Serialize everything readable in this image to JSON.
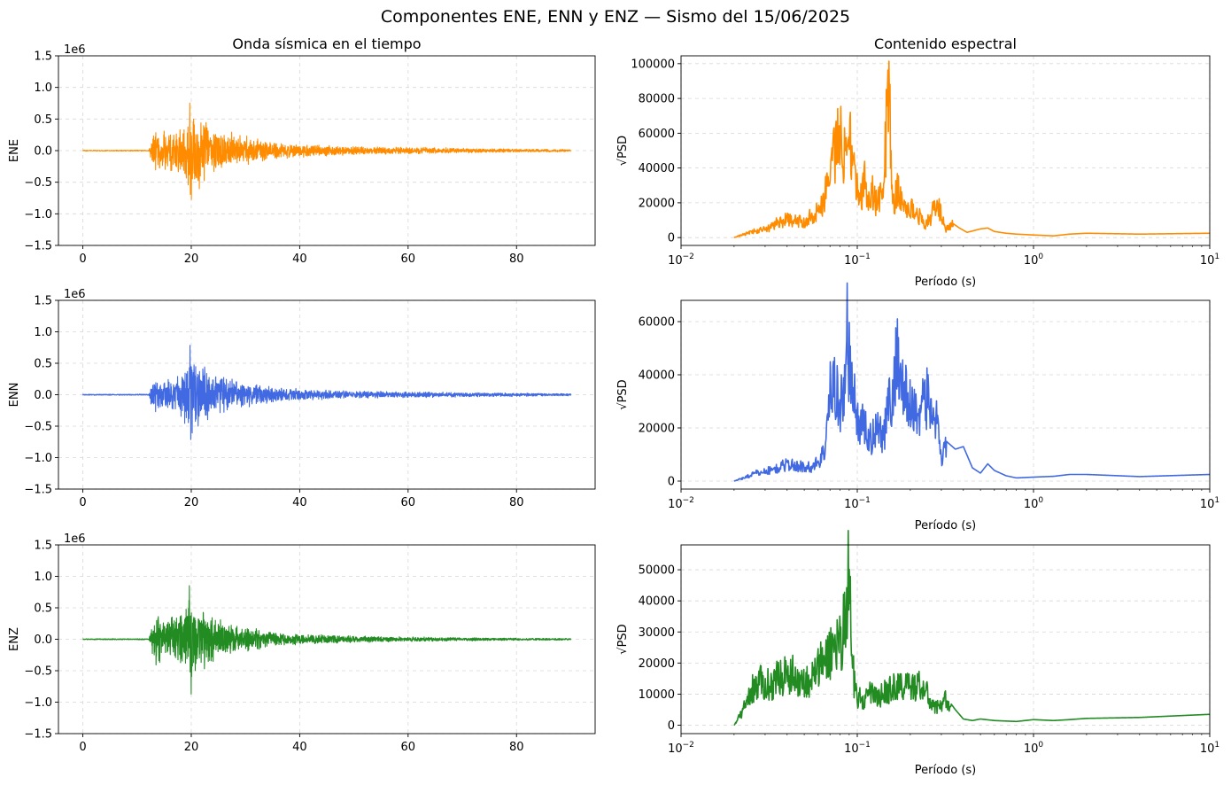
{
  "figure": {
    "title": "Componentes ENE, ENN y ENZ — Sismo del 15/06/2025"
  },
  "chart_data": [
    {
      "type": "line",
      "panel": "time-ene",
      "title": "Onda sísmica en el tiempo",
      "xlabel": "",
      "ylabel": "ENE",
      "offset_label": "1e6",
      "color": "#ff8c00",
      "xlim": [
        -4.5,
        94.5
      ],
      "ylim": [
        -1.5,
        1.5
      ],
      "xticks": [
        0,
        20,
        40,
        60,
        80
      ],
      "yticks": [
        -1.5,
        -1.0,
        -0.5,
        0.0,
        0.5,
        1.0,
        1.5
      ],
      "xticklabels": [
        "0",
        "20",
        "40",
        "60",
        "80"
      ],
      "yticklabels": [
        "−1.5",
        "−1.0",
        "−0.5",
        "0.0",
        "0.5",
        "1.0",
        "1.5"
      ],
      "grid": true,
      "envelope": [
        [
          0,
          0.01
        ],
        [
          12.2,
          0.01
        ],
        [
          12.6,
          0.2
        ],
        [
          13.5,
          0.4
        ],
        [
          15,
          0.32
        ],
        [
          17,
          0.38
        ],
        [
          18.5,
          0.42
        ],
        [
          19.4,
          0.85
        ],
        [
          19.9,
          1.1
        ],
        [
          20.4,
          0.85
        ],
        [
          21.5,
          0.62
        ],
        [
          23,
          0.5
        ],
        [
          25,
          0.38
        ],
        [
          28,
          0.28
        ],
        [
          32,
          0.2
        ],
        [
          36,
          0.14
        ],
        [
          42,
          0.1
        ],
        [
          50,
          0.07
        ],
        [
          58,
          0.06
        ],
        [
          62,
          0.06
        ],
        [
          70,
          0.04
        ],
        [
          80,
          0.03
        ],
        [
          90,
          0.02
        ]
      ]
    },
    {
      "type": "line",
      "panel": "time-enn",
      "title": "",
      "xlabel": "",
      "ylabel": "ENN",
      "offset_label": "1e6",
      "color": "#4169e1",
      "xlim": [
        -4.5,
        94.5
      ],
      "ylim": [
        -1.5,
        1.5
      ],
      "xticks": [
        0,
        20,
        40,
        60,
        80
      ],
      "yticks": [
        -1.5,
        -1.0,
        -0.5,
        0.0,
        0.5,
        1.0,
        1.5
      ],
      "xticklabels": [
        "0",
        "20",
        "40",
        "60",
        "80"
      ],
      "yticklabels": [
        "−1.5",
        "−1.0",
        "−0.5",
        "0.0",
        "0.5",
        "1.0",
        "1.5"
      ],
      "grid": true,
      "envelope": [
        [
          0,
          0.01
        ],
        [
          12.2,
          0.01
        ],
        [
          12.6,
          0.2
        ],
        [
          13.5,
          0.3
        ],
        [
          15,
          0.25
        ],
        [
          17,
          0.3
        ],
        [
          18.5,
          0.4
        ],
        [
          19.4,
          0.8
        ],
        [
          19.9,
          1.06
        ],
        [
          20.4,
          0.75
        ],
        [
          21.5,
          0.55
        ],
        [
          23,
          0.45
        ],
        [
          25,
          0.35
        ],
        [
          28,
          0.25
        ],
        [
          32,
          0.18
        ],
        [
          36,
          0.13
        ],
        [
          42,
          0.09
        ],
        [
          50,
          0.06
        ],
        [
          60,
          0.05
        ],
        [
          70,
          0.04
        ],
        [
          80,
          0.03
        ],
        [
          90,
          0.02
        ]
      ]
    },
    {
      "type": "line",
      "panel": "time-enz",
      "title": "",
      "xlabel": "",
      "ylabel": "ENZ",
      "offset_label": "1e6",
      "color": "#228b22",
      "xlim": [
        -4.5,
        94.5
      ],
      "ylim": [
        -1.5,
        1.5
      ],
      "xticks": [
        0,
        20,
        40,
        60,
        80
      ],
      "yticks": [
        -1.5,
        -1.0,
        -0.5,
        0.0,
        0.5,
        1.0,
        1.5
      ],
      "xticklabels": [
        "0",
        "20",
        "40",
        "60",
        "80"
      ],
      "yticklabels": [
        "−1.5",
        "−1.0",
        "−0.5",
        "0.0",
        "0.5",
        "1.0",
        "1.5"
      ],
      "grid": true,
      "envelope": [
        [
          0,
          0.01
        ],
        [
          12.2,
          0.01
        ],
        [
          12.6,
          0.25
        ],
        [
          13.5,
          0.5
        ],
        [
          15,
          0.4
        ],
        [
          17,
          0.42
        ],
        [
          18.5,
          0.45
        ],
        [
          19.4,
          0.8
        ],
        [
          19.9,
          1.05
        ],
        [
          20.4,
          0.8
        ],
        [
          21.5,
          0.6
        ],
        [
          23,
          0.45
        ],
        [
          25,
          0.35
        ],
        [
          28,
          0.25
        ],
        [
          32,
          0.18
        ],
        [
          36,
          0.12
        ],
        [
          42,
          0.08
        ],
        [
          50,
          0.06
        ],
        [
          60,
          0.04
        ],
        [
          70,
          0.03
        ],
        [
          80,
          0.02
        ],
        [
          90,
          0.015
        ]
      ]
    },
    {
      "type": "line",
      "panel": "psd-ene",
      "title": "Contenido espectral",
      "xlabel": "Período (s)",
      "ylabel": "√PSD",
      "color": "#ff8c00",
      "xscale": "log",
      "xlim": [
        0.01,
        10
      ],
      "ylim": [
        -4500,
        104500
      ],
      "xticks": [
        0.01,
        0.1,
        1,
        10
      ],
      "xtick_base": [
        "10",
        "10",
        "10",
        "10"
      ],
      "xtick_exp": [
        "−2",
        "−1",
        "0",
        "1"
      ],
      "yticks": [
        0,
        20000,
        40000,
        60000,
        80000,
        100000
      ],
      "yticklabels": [
        "0",
        "20000",
        "40000",
        "60000",
        "80000",
        "100000"
      ],
      "grid": true,
      "noise_until": 0.35,
      "curve": [
        [
          0.02,
          0
        ],
        [
          0.022,
          1500
        ],
        [
          0.025,
          3500
        ],
        [
          0.028,
          4500
        ],
        [
          0.032,
          6000
        ],
        [
          0.035,
          9500
        ],
        [
          0.04,
          11000
        ],
        [
          0.045,
          10000
        ],
        [
          0.05,
          10000
        ],
        [
          0.055,
          14000
        ],
        [
          0.06,
          16000
        ],
        [
          0.065,
          25000
        ],
        [
          0.07,
          45000
        ],
        [
          0.075,
          55000
        ],
        [
          0.08,
          62000
        ],
        [
          0.085,
          50000
        ],
        [
          0.088,
          85000
        ],
        [
          0.091,
          72000
        ],
        [
          0.095,
          45000
        ],
        [
          0.1,
          30000
        ],
        [
          0.105,
          25000
        ],
        [
          0.11,
          38000
        ],
        [
          0.115,
          20000
        ],
        [
          0.12,
          30000
        ],
        [
          0.13,
          20000
        ],
        [
          0.14,
          30000
        ],
        [
          0.145,
          60000
        ],
        [
          0.15,
          99000
        ],
        [
          0.155,
          55000
        ],
        [
          0.16,
          20000
        ],
        [
          0.17,
          30000
        ],
        [
          0.18,
          20000
        ],
        [
          0.2,
          18000
        ],
        [
          0.22,
          15000
        ],
        [
          0.24,
          8000
        ],
        [
          0.26,
          12000
        ],
        [
          0.28,
          21000
        ],
        [
          0.3,
          15000
        ],
        [
          0.32,
          5000
        ],
        [
          0.35,
          8000
        ],
        [
          0.38,
          5500
        ],
        [
          0.42,
          3000
        ],
        [
          0.5,
          5000
        ],
        [
          0.55,
          5500
        ],
        [
          0.6,
          3500
        ],
        [
          0.7,
          2500
        ],
        [
          0.8,
          2000
        ],
        [
          1.0,
          1500
        ],
        [
          1.3,
          1000
        ],
        [
          1.6,
          2000
        ],
        [
          2,
          2500
        ],
        [
          4,
          2000
        ],
        [
          10,
          2500
        ]
      ]
    },
    {
      "type": "line",
      "panel": "psd-enn",
      "title": "",
      "xlabel": "Período (s)",
      "ylabel": "√PSD",
      "color": "#4169e1",
      "xscale": "log",
      "xlim": [
        0.01,
        10
      ],
      "ylim": [
        -3000,
        68000
      ],
      "xticks": [
        0.01,
        0.1,
        1,
        10
      ],
      "xtick_base": [
        "10",
        "10",
        "10",
        "10"
      ],
      "xtick_exp": [
        "−2",
        "−1",
        "0",
        "1"
      ],
      "yticks": [
        0,
        20000,
        40000,
        60000
      ],
      "yticklabels": [
        "0",
        "20000",
        "40000",
        "60000"
      ],
      "grid": true,
      "noise_until": 0.32,
      "curve": [
        [
          0.02,
          0
        ],
        [
          0.023,
          1500
        ],
        [
          0.026,
          3000
        ],
        [
          0.03,
          4000
        ],
        [
          0.035,
          5000
        ],
        [
          0.04,
          7000
        ],
        [
          0.045,
          6000
        ],
        [
          0.05,
          6000
        ],
        [
          0.055,
          5500
        ],
        [
          0.06,
          8000
        ],
        [
          0.065,
          12000
        ],
        [
          0.07,
          35000
        ],
        [
          0.075,
          40000
        ],
        [
          0.08,
          30000
        ],
        [
          0.085,
          38000
        ],
        [
          0.088,
          62000
        ],
        [
          0.092,
          40000
        ],
        [
          0.1,
          25000
        ],
        [
          0.11,
          22000
        ],
        [
          0.12,
          16000
        ],
        [
          0.13,
          25000
        ],
        [
          0.14,
          18000
        ],
        [
          0.15,
          30000
        ],
        [
          0.16,
          35000
        ],
        [
          0.17,
          55000
        ],
        [
          0.18,
          38000
        ],
        [
          0.2,
          30000
        ],
        [
          0.22,
          28000
        ],
        [
          0.24,
          35000
        ],
        [
          0.26,
          30000
        ],
        [
          0.28,
          25000
        ],
        [
          0.3,
          8000
        ],
        [
          0.32,
          15000
        ],
        [
          0.36,
          12000
        ],
        [
          0.4,
          13000
        ],
        [
          0.45,
          5000
        ],
        [
          0.5,
          3000
        ],
        [
          0.55,
          6500
        ],
        [
          0.6,
          4000
        ],
        [
          0.7,
          2000
        ],
        [
          0.8,
          1200
        ],
        [
          1.0,
          1500
        ],
        [
          1.3,
          1800
        ],
        [
          1.6,
          2500
        ],
        [
          2,
          2500
        ],
        [
          4,
          1700
        ],
        [
          10,
          2500
        ]
      ]
    },
    {
      "type": "line",
      "panel": "psd-enz",
      "title": "",
      "xlabel": "Período (s)",
      "ylabel": "√PSD",
      "color": "#228b22",
      "xscale": "log",
      "xlim": [
        0.01,
        10
      ],
      "ylim": [
        -2700,
        58000
      ],
      "xticks": [
        0.01,
        0.1,
        1,
        10
      ],
      "xtick_base": [
        "10",
        "10",
        "10",
        "10"
      ],
      "xtick_exp": [
        "−2",
        "−1",
        "0",
        "1"
      ],
      "yticks": [
        0,
        10000,
        20000,
        30000,
        40000,
        50000
      ],
      "yticklabels": [
        "0",
        "10000",
        "20000",
        "30000",
        "40000",
        "50000"
      ],
      "grid": true,
      "noise_until": 0.34,
      "curve": [
        [
          0.02,
          0
        ],
        [
          0.022,
          4000
        ],
        [
          0.025,
          12000
        ],
        [
          0.028,
          15000
        ],
        [
          0.032,
          14000
        ],
        [
          0.035,
          16000
        ],
        [
          0.04,
          18000
        ],
        [
          0.045,
          17000
        ],
        [
          0.05,
          15000
        ],
        [
          0.055,
          16000
        ],
        [
          0.06,
          20000
        ],
        [
          0.065,
          22000
        ],
        [
          0.07,
          25000
        ],
        [
          0.075,
          28000
        ],
        [
          0.08,
          30000
        ],
        [
          0.085,
          35000
        ],
        [
          0.088,
          52000
        ],
        [
          0.092,
          40000
        ],
        [
          0.096,
          15000
        ],
        [
          0.1,
          10000
        ],
        [
          0.11,
          8000
        ],
        [
          0.12,
          12000
        ],
        [
          0.13,
          9000
        ],
        [
          0.14,
          11000
        ],
        [
          0.16,
          13000
        ],
        [
          0.18,
          14000
        ],
        [
          0.2,
          13000
        ],
        [
          0.22,
          14000
        ],
        [
          0.24,
          13000
        ],
        [
          0.26,
          8000
        ],
        [
          0.28,
          6000
        ],
        [
          0.32,
          9000
        ],
        [
          0.36,
          5000
        ],
        [
          0.4,
          2000
        ],
        [
          0.45,
          1500
        ],
        [
          0.5,
          2000
        ],
        [
          0.6,
          1500
        ],
        [
          0.8,
          1200
        ],
        [
          1.0,
          1800
        ],
        [
          1.3,
          1500
        ],
        [
          1.6,
          1800
        ],
        [
          2,
          2200
        ],
        [
          4,
          2500
        ],
        [
          10,
          3500
        ]
      ]
    }
  ]
}
